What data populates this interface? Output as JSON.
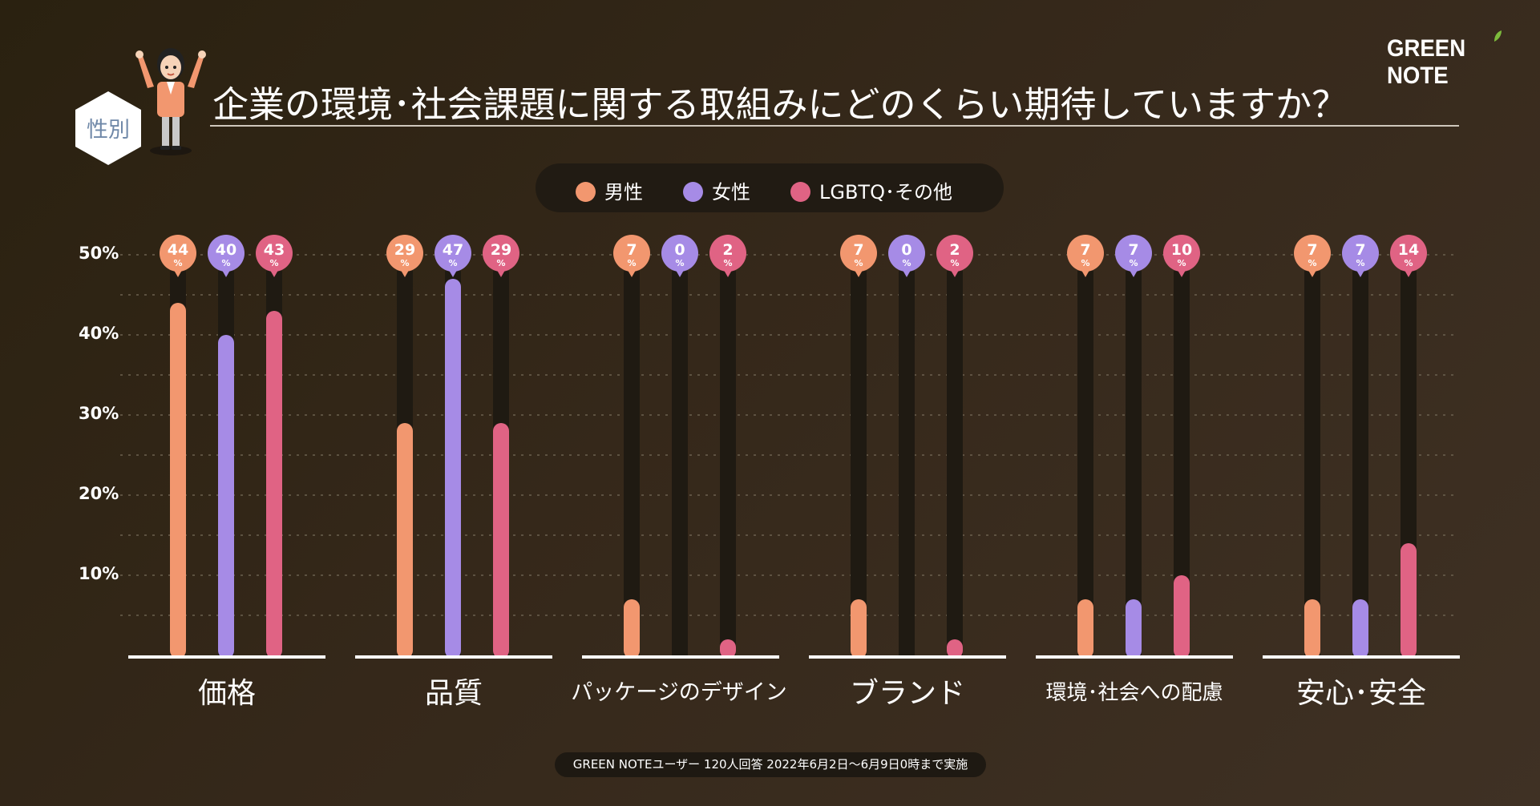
{
  "brand": {
    "logo_text": "GREEN NOTE"
  },
  "header": {
    "segment_label": "性別",
    "title": "企業の環境･社会課題に関する取組みにどのくらい期待していますか？"
  },
  "colors": {
    "male": "#f2976f",
    "female": "#a68be6",
    "lgbtq": "#e06384",
    "track": "#1f1a12",
    "baseline": "#ffffff",
    "grid": "#6b604f"
  },
  "footer": {
    "note": "GREEN NOTEユーザー 120人回答 2022年6月2日〜6月9日0時まで実施"
  },
  "chart_data": {
    "type": "bar",
    "title": "企業の環境･社会課題に関する取組みにどのくらい期待していますか？",
    "categories": [
      "価格",
      "品質",
      "パッケージのデザイン",
      "ブランド",
      "環境･社会への配慮",
      "安心･安全"
    ],
    "series": [
      {
        "name": "男性",
        "color": "#f2976f",
        "values": [
          44,
          29,
          7,
          7,
          7,
          7
        ]
      },
      {
        "name": "女性",
        "color": "#a68be6",
        "values": [
          40,
          47,
          0,
          0,
          7,
          7
        ]
      },
      {
        "name": "LGBTQ･その他",
        "color": "#e06384",
        "values": [
          43,
          29,
          2,
          2,
          10,
          14
        ]
      }
    ],
    "value_unit": "%",
    "yticks": [
      "10%",
      "20%",
      "30%",
      "40%",
      "50%"
    ],
    "ylim": [
      0,
      50
    ],
    "grid": true,
    "legend_position": "top-center"
  }
}
